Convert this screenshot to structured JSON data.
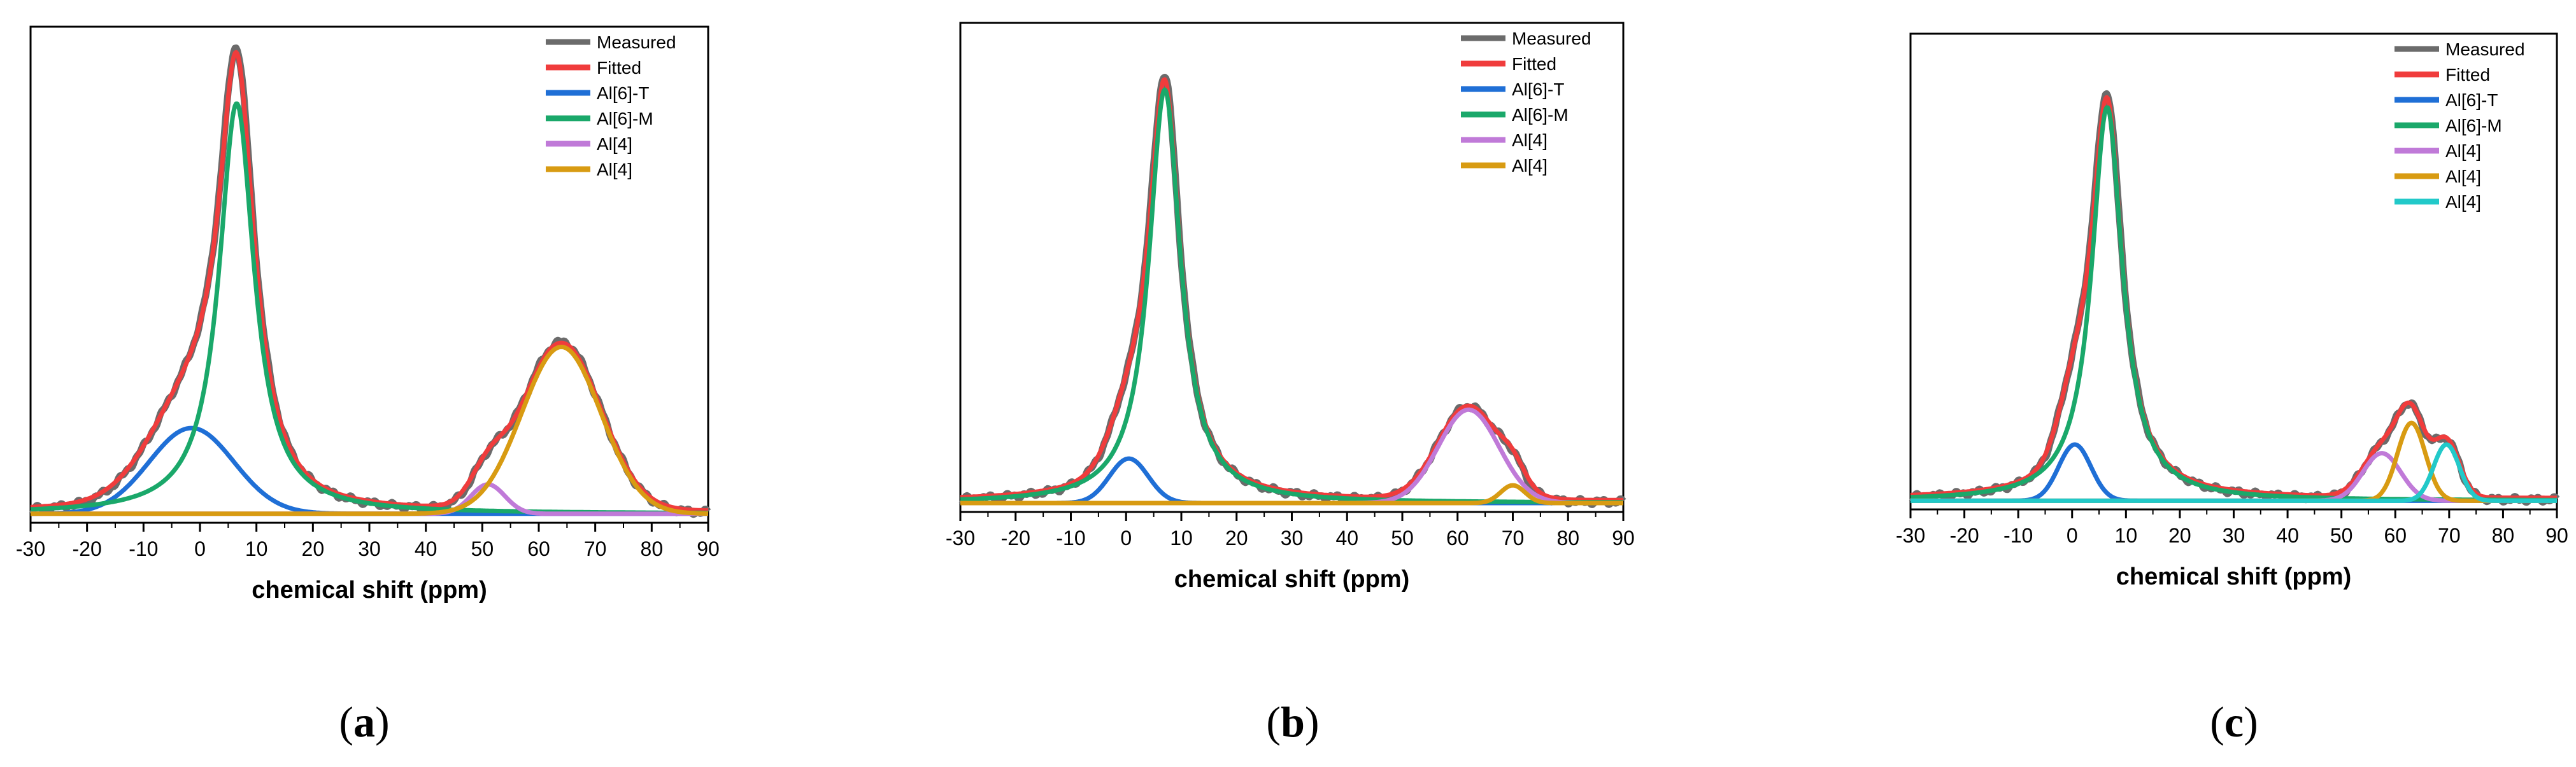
{
  "figure": {
    "panel_labels": [
      "(a)",
      "(b)",
      "(c)"
    ]
  },
  "colors": {
    "Measured": "#6b6b6b",
    "Fitted": "#f03c3c",
    "Al[6]-T": "#1f6fd6",
    "Al[6]-M": "#1aa86a",
    "Al[4]-violet": "#c07ad8",
    "Al[4]-orange": "#d89b12",
    "Al[4]-cyan": "#22c9c9",
    "axis": "#000000"
  },
  "chart_data": [
    {
      "type": "line",
      "panel": "(a)",
      "title": "",
      "xlabel": "chemical shift (ppm)",
      "ylabel": "",
      "xlim": [
        -30,
        90
      ],
      "ylim": [
        -0.02,
        1.08
      ],
      "xticks": [
        -30,
        -20,
        -10,
        0,
        10,
        20,
        30,
        40,
        50,
        60,
        70,
        80,
        90
      ],
      "xtick_labels": [
        "-30",
        "-20",
        "-10",
        "0",
        "10",
        "20",
        "30",
        "40",
        "50",
        "60",
        "70",
        "80",
        "90"
      ],
      "legend_position": "top-right",
      "legend": [
        {
          "label": "Measured",
          "color_key": "Measured"
        },
        {
          "label": "Fitted",
          "color_key": "Fitted"
        },
        {
          "label": "Al[6]-T",
          "color_key": "Al[6]-T"
        },
        {
          "label": "Al[6]-M",
          "color_key": "Al[6]-M"
        },
        {
          "label": "Al[4]",
          "color_key": "Al[4]-violet"
        },
        {
          "label": "Al[4]",
          "color_key": "Al[4]-orange"
        }
      ],
      "components": [
        {
          "name": "Al[6]-T",
          "color_key": "Al[6]-T",
          "center": -1.5,
          "height": 0.19,
          "width": 7.5,
          "shape": "gaussian"
        },
        {
          "name": "Al[6]-M",
          "color_key": "Al[6]-M",
          "center": 6.5,
          "height": 0.91,
          "width": 3.8,
          "shape": "lorentz"
        },
        {
          "name": "Al[4]",
          "color_key": "Al[4]-violet",
          "center": 51,
          "height": 0.065,
          "width": 3.0,
          "shape": "gaussian"
        },
        {
          "name": "Al[4]",
          "color_key": "Al[4]-orange",
          "center": 64,
          "height": 0.37,
          "width": 7.0,
          "shape": "gaussian"
        }
      ],
      "baseline": 0.005
    },
    {
      "type": "line",
      "panel": "(b)",
      "title": "",
      "xlabel": "chemical shift (ppm)",
      "ylabel": "",
      "xlim": [
        -30,
        90
      ],
      "ylim": [
        -0.02,
        1.08
      ],
      "xticks": [
        -30,
        -20,
        -10,
        0,
        10,
        20,
        30,
        40,
        50,
        60,
        70,
        80,
        90
      ],
      "xtick_labels": [
        "-30",
        "-20",
        "-10",
        "0",
        "10",
        "20",
        "30",
        "40",
        "50",
        "60",
        "70",
        "80",
        "90"
      ],
      "legend_position": "top-right",
      "legend": [
        {
          "label": "Measured",
          "color_key": "Measured"
        },
        {
          "label": "Fitted",
          "color_key": "Fitted"
        },
        {
          "label": "Al[6]-T",
          "color_key": "Al[6]-T"
        },
        {
          "label": "Al[6]-M",
          "color_key": "Al[6]-M"
        },
        {
          "label": "Al[4]",
          "color_key": "Al[4]-violet"
        },
        {
          "label": "Al[4]",
          "color_key": "Al[4]-orange"
        }
      ],
      "components": [
        {
          "name": "Al[6]-T",
          "color_key": "Al[6]-T",
          "center": 0.5,
          "height": 0.1,
          "width": 3.5,
          "shape": "gaussian"
        },
        {
          "name": "Al[6]-M",
          "color_key": "Al[6]-M",
          "center": 7,
          "height": 0.93,
          "width": 3.5,
          "shape": "lorentz"
        },
        {
          "name": "Al[4]",
          "color_key": "Al[4]-violet",
          "center": 62,
          "height": 0.21,
          "width": 5.5,
          "shape": "gaussian"
        },
        {
          "name": "Al[4]",
          "color_key": "Al[4]-orange",
          "center": 70,
          "height": 0.04,
          "width": 2.2,
          "shape": "gaussian"
        }
      ],
      "baseline": 0.005
    },
    {
      "type": "line",
      "panel": "(c)",
      "title": "",
      "xlabel": "chemical shift (ppm)",
      "ylabel": "",
      "xlim": [
        -30,
        90
      ],
      "ylim": [
        -0.02,
        1.08
      ],
      "xticks": [
        -30,
        -20,
        -10,
        0,
        10,
        20,
        30,
        40,
        50,
        60,
        70,
        80,
        90
      ],
      "xtick_labels": [
        "-30",
        "-20",
        "-10",
        "0",
        "10",
        "20",
        "30",
        "40",
        "50",
        "60",
        "70",
        "80",
        "90"
      ],
      "legend_position": "top-right",
      "legend": [
        {
          "label": "Measured",
          "color_key": "Measured"
        },
        {
          "label": "Fitted",
          "color_key": "Fitted"
        },
        {
          "label": "Al[6]-T",
          "color_key": "Al[6]-T"
        },
        {
          "label": "Al[6]-M",
          "color_key": "Al[6]-M"
        },
        {
          "label": "Al[4]",
          "color_key": "Al[4]-violet"
        },
        {
          "label": "Al[4]",
          "color_key": "Al[4]-orange"
        },
        {
          "label": "Al[4]",
          "color_key": "Al[4]-cyan"
        }
      ],
      "components": [
        {
          "name": "Al[6]-T",
          "color_key": "Al[6]-T",
          "center": 0.5,
          "height": 0.13,
          "width": 3.0,
          "shape": "gaussian"
        },
        {
          "name": "Al[6]-M",
          "color_key": "Al[6]-M",
          "center": 6.5,
          "height": 0.91,
          "width": 3.5,
          "shape": "lorentz"
        },
        {
          "name": "Al[4]",
          "color_key": "Al[4]-violet",
          "center": 57.5,
          "height": 0.11,
          "width": 3.5,
          "shape": "gaussian"
        },
        {
          "name": "Al[4]",
          "color_key": "Al[4]-orange",
          "center": 63,
          "height": 0.18,
          "width": 2.6,
          "shape": "gaussian"
        },
        {
          "name": "Al[4]",
          "color_key": "Al[4]-cyan",
          "center": 69.5,
          "height": 0.13,
          "width": 2.4,
          "shape": "gaussian"
        }
      ],
      "baseline": 0.005
    }
  ]
}
